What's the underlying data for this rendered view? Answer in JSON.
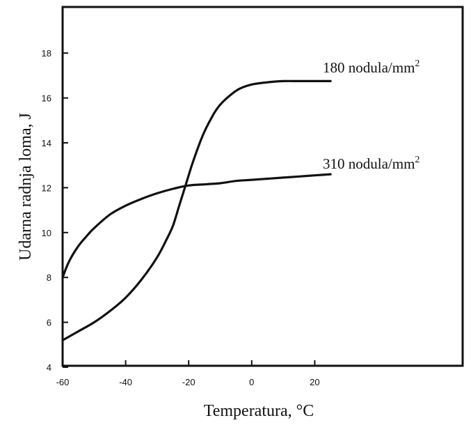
{
  "chart_data": {
    "type": "line",
    "title": "",
    "xlabel": "Temperatura, °C",
    "ylabel": "Udarna radnja loma, J",
    "xlim": [
      -60,
      25
    ],
    "ylim": [
      4,
      20
    ],
    "xticks": [
      -60,
      -40,
      -20,
      0,
      20
    ],
    "yticks": [
      4,
      6,
      8,
      10,
      12,
      14,
      16,
      18
    ],
    "grid": false,
    "series": [
      {
        "name": "180 nodula/mm",
        "name_superscript": "2",
        "x": [
          -60,
          -55,
          -50,
          -45,
          -40,
          -35,
          -30,
          -27,
          -25,
          -23,
          -21,
          -19,
          -17,
          -15,
          -12,
          -10,
          -7,
          -4,
          0,
          5,
          10,
          15,
          20,
          25
        ],
        "y": [
          5.2,
          5.6,
          6.0,
          6.5,
          7.1,
          7.9,
          8.9,
          9.7,
          10.3,
          11.2,
          12.1,
          13.0,
          13.8,
          14.5,
          15.3,
          15.7,
          16.1,
          16.4,
          16.6,
          16.7,
          16.75,
          16.75,
          16.75,
          16.75
        ]
      },
      {
        "name": "310 nodula/mm",
        "name_superscript": "2",
        "x": [
          -60,
          -58,
          -55,
          -52,
          -50,
          -45,
          -40,
          -35,
          -30,
          -25,
          -20,
          -15,
          -10,
          -5,
          0,
          5,
          10,
          15,
          20,
          25
        ],
        "y": [
          8.0,
          8.7,
          9.4,
          9.9,
          10.2,
          10.8,
          11.2,
          11.5,
          11.75,
          11.95,
          12.1,
          12.15,
          12.2,
          12.3,
          12.35,
          12.4,
          12.45,
          12.5,
          12.55,
          12.6
        ]
      }
    ]
  }
}
